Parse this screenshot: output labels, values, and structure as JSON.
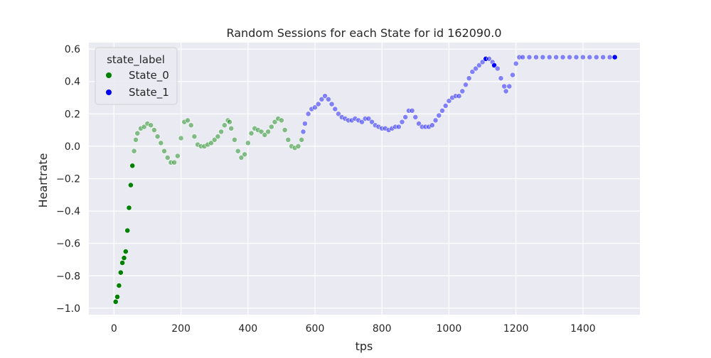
{
  "chart_data": {
    "type": "scatter",
    "title": "Random Sessions for each State for id 162090.0",
    "xlabel": "tps",
    "ylabel": "Heartrate",
    "xlim": [
      -75,
      1570
    ],
    "ylim": [
      -1.04,
      0.64
    ],
    "x_ticks": [
      0,
      200,
      400,
      600,
      800,
      1000,
      1200,
      1400
    ],
    "y_ticks": [
      -1.0,
      -0.8,
      -0.6,
      -0.4,
      -0.2,
      0.0,
      0.2,
      0.4,
      0.6
    ],
    "x_tick_labels": [
      "0",
      "200",
      "400",
      "600",
      "800",
      "1000",
      "1200",
      "1400"
    ],
    "y_tick_labels": [
      "−1.0",
      "−0.8",
      "−0.6",
      "−0.4",
      "−0.2",
      "0.0",
      "0.2",
      "0.4",
      "0.6"
    ],
    "grid": true,
    "background": "#eaeaf2",
    "legend": {
      "title": "state_label",
      "placement": "top-left",
      "entries": [
        {
          "label": "State_0",
          "color": "#008000"
        },
        {
          "label": "State_1",
          "color": "#0000ff"
        }
      ]
    },
    "series": [
      {
        "name": "State_0",
        "color": "#008000",
        "points": [
          [
            5,
            -0.96
          ],
          [
            10,
            -0.93
          ],
          [
            15,
            -0.86
          ],
          [
            20,
            -0.78
          ],
          [
            25,
            -0.72
          ],
          [
            30,
            -0.69
          ],
          [
            35,
            -0.65
          ],
          [
            40,
            -0.52
          ],
          [
            45,
            -0.38
          ],
          [
            50,
            -0.24
          ],
          [
            55,
            -0.12
          ],
          [
            60,
            -0.03
          ],
          [
            65,
            0.04
          ],
          [
            70,
            0.08
          ],
          [
            80,
            0.11
          ],
          [
            90,
            0.12
          ],
          [
            100,
            0.14
          ],
          [
            110,
            0.13
          ],
          [
            120,
            0.1
          ],
          [
            130,
            0.06
          ],
          [
            140,
            0.02
          ],
          [
            150,
            -0.03
          ],
          [
            160,
            -0.07
          ],
          [
            170,
            -0.1
          ],
          [
            180,
            -0.1
          ],
          [
            190,
            -0.06
          ],
          [
            200,
            0.05
          ],
          [
            210,
            0.15
          ],
          [
            220,
            0.16
          ],
          [
            230,
            0.13
          ],
          [
            240,
            0.06
          ],
          [
            250,
            0.01
          ],
          [
            260,
            0.0
          ],
          [
            270,
            0.0
          ],
          [
            280,
            0.01
          ],
          [
            290,
            0.02
          ],
          [
            300,
            0.04
          ],
          [
            310,
            0.06
          ],
          [
            320,
            0.09
          ],
          [
            330,
            0.13
          ],
          [
            340,
            0.16
          ],
          [
            345,
            0.15
          ],
          [
            350,
            0.11
          ],
          [
            360,
            0.04
          ],
          [
            370,
            -0.03
          ],
          [
            380,
            -0.07
          ],
          [
            390,
            -0.05
          ],
          [
            400,
            0.02
          ],
          [
            410,
            0.08
          ],
          [
            420,
            0.11
          ],
          [
            430,
            0.1
          ],
          [
            440,
            0.09
          ],
          [
            450,
            0.07
          ],
          [
            460,
            0.09
          ],
          [
            470,
            0.12
          ],
          [
            480,
            0.15
          ],
          [
            490,
            0.17
          ],
          [
            500,
            0.16
          ],
          [
            510,
            0.1
          ],
          [
            520,
            0.04
          ],
          [
            530,
            0.0
          ],
          [
            540,
            -0.01
          ],
          [
            550,
            0.0
          ],
          [
            560,
            0.04
          ]
        ]
      },
      {
        "name": "State_1",
        "color": "#0000ff",
        "points": [
          [
            565,
            0.09
          ],
          [
            570,
            0.14
          ],
          [
            580,
            0.2
          ],
          [
            590,
            0.23
          ],
          [
            600,
            0.24
          ],
          [
            610,
            0.26
          ],
          [
            620,
            0.29
          ],
          [
            630,
            0.31
          ],
          [
            640,
            0.29
          ],
          [
            650,
            0.26
          ],
          [
            660,
            0.23
          ],
          [
            670,
            0.2
          ],
          [
            680,
            0.18
          ],
          [
            690,
            0.17
          ],
          [
            700,
            0.16
          ],
          [
            710,
            0.16
          ],
          [
            720,
            0.17
          ],
          [
            730,
            0.16
          ],
          [
            740,
            0.15
          ],
          [
            750,
            0.17
          ],
          [
            760,
            0.17
          ],
          [
            770,
            0.15
          ],
          [
            780,
            0.13
          ],
          [
            790,
            0.12
          ],
          [
            800,
            0.11
          ],
          [
            810,
            0.11
          ],
          [
            820,
            0.1
          ],
          [
            830,
            0.11
          ],
          [
            840,
            0.12
          ],
          [
            850,
            0.12
          ],
          [
            860,
            0.15
          ],
          [
            870,
            0.18
          ],
          [
            880,
            0.22
          ],
          [
            890,
            0.22
          ],
          [
            900,
            0.18
          ],
          [
            910,
            0.14
          ],
          [
            920,
            0.12
          ],
          [
            930,
            0.12
          ],
          [
            940,
            0.12
          ],
          [
            950,
            0.13
          ],
          [
            960,
            0.16
          ],
          [
            970,
            0.19
          ],
          [
            980,
            0.22
          ],
          [
            990,
            0.25
          ],
          [
            1000,
            0.28
          ],
          [
            1010,
            0.3
          ],
          [
            1020,
            0.31
          ],
          [
            1030,
            0.31
          ],
          [
            1040,
            0.34
          ],
          [
            1050,
            0.38
          ],
          [
            1060,
            0.42
          ],
          [
            1070,
            0.46
          ],
          [
            1080,
            0.48
          ],
          [
            1090,
            0.5
          ],
          [
            1100,
            0.52
          ],
          [
            1110,
            0.54
          ],
          [
            1120,
            0.54
          ],
          [
            1130,
            0.52
          ],
          [
            1135,
            0.5
          ],
          [
            1145,
            0.48
          ],
          [
            1155,
            0.42
          ],
          [
            1165,
            0.37
          ],
          [
            1170,
            0.34
          ],
          [
            1180,
            0.37
          ],
          [
            1190,
            0.44
          ],
          [
            1200,
            0.51
          ],
          [
            1210,
            0.55
          ],
          [
            1220,
            0.55
          ],
          [
            1240,
            0.55
          ],
          [
            1260,
            0.55
          ],
          [
            1280,
            0.55
          ],
          [
            1300,
            0.55
          ],
          [
            1320,
            0.55
          ],
          [
            1340,
            0.55
          ],
          [
            1360,
            0.55
          ],
          [
            1380,
            0.55
          ],
          [
            1400,
            0.55
          ],
          [
            1420,
            0.55
          ],
          [
            1440,
            0.55
          ],
          [
            1460,
            0.55
          ],
          [
            1480,
            0.55
          ],
          [
            1495,
            0.55
          ]
        ]
      }
    ]
  }
}
